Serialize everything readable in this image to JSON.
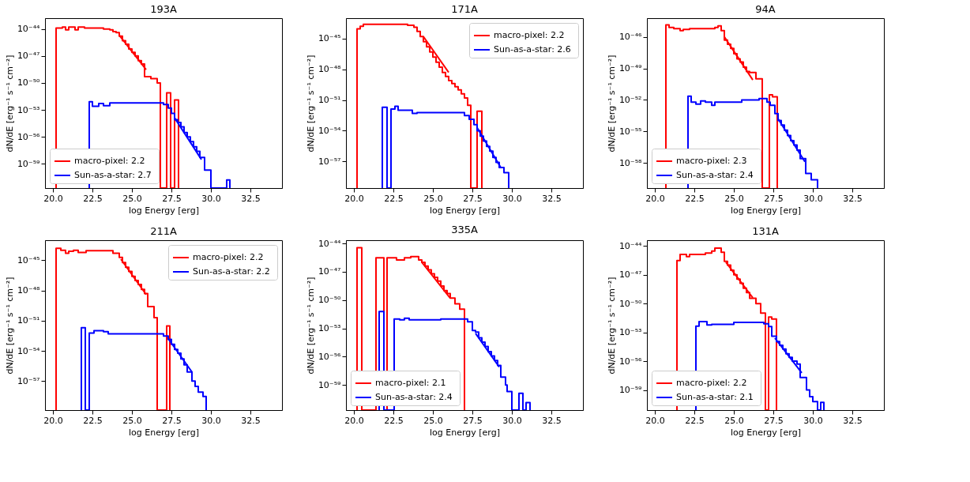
{
  "chart_data": [
    {
      "type": "histogram",
      "title": "193A",
      "xlabel": "log Energy [erg]",
      "ylabel": "dN/dE [erg⁻¹ s⁻¹ cm⁻²]",
      "log": true,
      "legend": "bottom left",
      "xlim": [
        19.5,
        34.5
      ],
      "ylim": [
        2e-62,
        1.6e-43
      ],
      "xticks": [
        {
          "value": 20,
          "label": "20.0"
        },
        22.5,
        {
          "value": 25,
          "label": "25.0"
        },
        27.5,
        {
          "value": 30,
          "label": "30.0"
        },
        32.5
      ],
      "yticks": [
        {
          "value": 1e-44,
          "label": "10⁻⁴⁴"
        },
        {
          "value": 1e-47,
          "label": "10⁻⁴⁷"
        },
        {
          "value": 1e-50,
          "label": "10⁻⁵⁰"
        },
        {
          "value": 1e-53,
          "label": "10⁻⁵³"
        },
        {
          "value": 1e-56,
          "label": "10⁻⁵⁶"
        },
        {
          "value": 1e-59,
          "label": "10⁻⁵⁹"
        }
      ],
      "series": [
        {
          "name": "macro-pixel:  2.2",
          "color": "#ff0000",
          "bins": [
            20.2,
            20.6,
            20.8,
            21.0,
            21.4,
            21.6,
            22.0,
            23.2,
            23.6,
            23.8,
            24.0,
            24.2,
            24.4,
            24.6,
            24.8,
            25.0,
            25.2,
            25.4,
            25.6,
            25.8,
            26.2,
            26.6,
            26.8,
            27.2,
            27.45,
            27.7,
            27.95
          ],
          "values": [
            1.3e-44,
            1.6e-44,
            8e-45,
            1.6e-44,
            8e-45,
            1.6e-44,
            1.3e-44,
            1e-44,
            8e-45,
            5e-45,
            4e-45,
            1.6e-45,
            5e-46,
            2e-46,
            6e-47,
            2.5e-47,
            1e-47,
            3e-48,
            1.3e-48,
            5e-50,
            3e-50,
            1e-50,
            null,
            8e-52,
            null,
            1.3e-52
          ]
        },
        {
          "name": "Sun-as-a-star:  2.7",
          "color": "#0000ff",
          "bins": [
            22.3,
            22.5,
            22.9,
            23.2,
            23.6,
            23.8,
            27.0,
            27.3,
            27.5,
            27.7,
            27.9,
            28.1,
            28.3,
            28.5,
            28.7,
            28.9,
            29.1,
            29.3,
            29.6,
            30.0,
            31.0,
            31.2
          ],
          "values": [
            8e-53,
            2.5e-53,
            5e-53,
            3e-53,
            6e-53,
            6e-53,
            4e-53,
            1.6e-53,
            4e-54,
            8e-55,
            4e-55,
            1.3e-55,
            3e-56,
            1e-56,
            3e-57,
            8e-58,
            2.5e-58,
            5e-59,
            2e-60,
            null,
            1.6e-61
          ]
        },
        {
          "color": "#ff0000",
          "type": "line",
          "x": [
            24.2,
            25.9
          ],
          "values": [
            2e-45,
            3e-49
          ]
        },
        {
          "color": "#0000ff",
          "type": "line",
          "x": [
            27.7,
            29.4
          ],
          "values": [
            1.3e-54,
            3e-59
          ]
        }
      ]
    },
    {
      "type": "histogram",
      "title": "171A",
      "xlabel": "log Energy [erg]",
      "ylabel": "dN/dE [erg⁻¹ s⁻¹ cm⁻²]",
      "log": true,
      "legend": "top right",
      "xlim": [
        19.5,
        34.5
      ],
      "ylim": [
        2.5e-60,
        1e-43
      ],
      "xticks": [
        {
          "value": 20,
          "label": "20.0"
        },
        22.5,
        {
          "value": 25,
          "label": "25.0"
        },
        27.5,
        {
          "value": 30,
          "label": "30.0"
        },
        32.5
      ],
      "yticks": [
        {
          "value": 1e-45,
          "label": "10⁻⁴⁵"
        },
        {
          "value": 1e-48,
          "label": "10⁻⁴⁸"
        },
        {
          "value": 1e-51,
          "label": "10⁻⁵¹"
        },
        {
          "value": 1e-54,
          "label": "10⁻⁵⁴"
        },
        {
          "value": 1e-57,
          "label": "10⁻⁵⁷"
        }
      ],
      "series": [
        {
          "name": "macro-pixel:  2.2",
          "color": "#ff0000",
          "bins": [
            20.2,
            20.4,
            20.6,
            23.4,
            23.8,
            24.0,
            24.2,
            24.4,
            24.6,
            24.8,
            25.0,
            25.2,
            25.4,
            25.6,
            25.8,
            26.0,
            26.2,
            26.4,
            26.6,
            26.8,
            27.0,
            27.2,
            27.4,
            27.8,
            28.1
          ],
          "values": [
            9e-45,
            1.6e-44,
            2.5e-44,
            2e-44,
            1.3e-44,
            5e-45,
            1.6e-45,
            5e-46,
            1.6e-46,
            5e-47,
            1.6e-47,
            5e-48,
            1.6e-48,
            5e-49,
            2e-49,
            8e-50,
            4e-50,
            2e-50,
            1e-50,
            4e-51,
            1.6e-51,
            3e-52,
            null,
            8e-53
          ]
        },
        {
          "name": "Sun-as-a-star:  2.6",
          "color": "#0000ff",
          "bins": [
            21.8,
            22.1,
            22.35,
            22.6,
            22.8,
            23.7,
            24.0,
            27.0,
            27.3,
            27.6,
            27.8,
            28.0,
            28.2,
            28.4,
            28.6,
            28.8,
            29.0,
            29.2,
            29.5,
            29.8
          ],
          "values": [
            2e-52,
            null,
            1.3e-52,
            2.5e-52,
            1e-52,
            5e-53,
            6e-53,
            3e-53,
            1.3e-53,
            4e-54,
            1e-54,
            3e-55,
            1e-55,
            3e-56,
            1e-56,
            2.5e-57,
            8e-58,
            2.5e-58,
            8e-59
          ]
        },
        {
          "color": "#ff0000",
          "type": "line",
          "x": [
            24.4,
            26.0
          ],
          "values": [
            1.6e-45,
            5e-49
          ]
        },
        {
          "color": "#0000ff",
          "type": "line",
          "x": [
            27.8,
            29.3
          ],
          "values": [
            2e-54,
            2.5e-58
          ]
        }
      ]
    },
    {
      "type": "histogram",
      "title": "94A",
      "xlabel": "log Energy [erg]",
      "ylabel": "dN/dE [erg⁻¹ s⁻¹ cm⁻²]",
      "log": true,
      "legend": "bottom left",
      "xlim": [
        19.5,
        34.5
      ],
      "ylim": [
        4e-61,
        6e-45
      ],
      "xticks": [
        {
          "value": 20,
          "label": "20.0"
        },
        22.5,
        {
          "value": 25,
          "label": "25.0"
        },
        27.5,
        {
          "value": 30,
          "label": "30.0"
        },
        32.5
      ],
      "yticks": [
        {
          "value": 1e-46,
          "label": "10⁻⁴⁶"
        },
        {
          "value": 1e-49,
          "label": "10⁻⁴⁹"
        },
        {
          "value": 1e-52,
          "label": "10⁻⁵²"
        },
        {
          "value": 1e-55,
          "label": "10⁻⁵⁵"
        },
        {
          "value": 1e-58,
          "label": "10⁻⁵⁸"
        }
      ],
      "series": [
        {
          "name": "macro-pixel:  2.3",
          "color": "#ff0000",
          "bins": [
            20.7,
            20.9,
            21.2,
            21.6,
            21.8,
            22.2,
            23.8,
            24.0,
            24.2,
            24.4,
            24.6,
            24.8,
            25.0,
            25.2,
            25.4,
            25.6,
            25.8,
            26.0,
            26.4,
            26.8,
            27.25,
            27.45,
            27.75
          ],
          "values": [
            1.4e-45,
            8e-46,
            6e-46,
            4e-46,
            5e-46,
            6e-46,
            8e-46,
            1.1e-45,
            4e-46,
            5e-47,
            2e-47,
            8e-48,
            2.5e-48,
            8e-49,
            4e-49,
            1.3e-49,
            5e-50,
            4e-50,
            1e-50,
            null,
            3e-52,
            2e-52
          ]
        },
        {
          "name": "Sun-as-a-star:  2.4",
          "color": "#0000ff",
          "bins": [
            22.1,
            22.3,
            22.6,
            22.9,
            23.2,
            23.6,
            23.8,
            25.5,
            26.6,
            27.1,
            27.3,
            27.6,
            27.8,
            28.0,
            28.2,
            28.4,
            28.6,
            28.8,
            29.0,
            29.2,
            29.55,
            29.9,
            30.3
          ],
          "values": [
            2.2e-52,
            6e-53,
            4e-53,
            8e-53,
            6e-53,
            3e-53,
            6e-53,
            1e-52,
            1.3e-52,
            6e-53,
            3e-53,
            5e-54,
            1.1e-54,
            4e-55,
            1.3e-55,
            4e-56,
            1.3e-56,
            5e-57,
            1.6e-57,
            2.5e-58,
            1e-59,
            2.5e-60
          ]
        },
        {
          "color": "#ff0000",
          "type": "line",
          "x": [
            24.4,
            26.2
          ],
          "values": [
            1e-46,
            8e-51
          ]
        },
        {
          "color": "#0000ff",
          "type": "line",
          "x": [
            27.8,
            29.5
          ],
          "values": [
            1.6e-54,
            1.3e-58
          ]
        }
      ]
    },
    {
      "type": "histogram",
      "title": "211A",
      "xlabel": "log Energy [erg]",
      "ylabel": "dN/dE [erg⁻¹ s⁻¹ cm⁻²]",
      "log": true,
      "legend": "top right",
      "xlim": [
        19.5,
        34.5
      ],
      "ylim": [
        1.3e-60,
        1e-43
      ],
      "xticks": [
        {
          "value": 20,
          "label": "20.0"
        },
        22.5,
        {
          "value": 25,
          "label": "25.0"
        },
        27.5,
        {
          "value": 30,
          "label": "30.0"
        },
        32.5
      ],
      "yticks": [
        {
          "value": 1e-45,
          "label": "10⁻⁴⁵"
        },
        {
          "value": 1e-48,
          "label": "10⁻⁴⁸"
        },
        {
          "value": 1e-51,
          "label": "10⁻⁵¹"
        },
        {
          "value": 1e-54,
          "label": "10⁻⁵⁴"
        },
        {
          "value": 1e-57,
          "label": "10⁻⁵⁷"
        }
      ],
      "series": [
        {
          "name": "macro-pixel:  2.2",
          "color": "#ff0000",
          "bins": [
            20.2,
            20.5,
            20.8,
            21.0,
            21.3,
            21.6,
            22.1,
            23.8,
            24.2,
            24.4,
            24.6,
            24.8,
            25.0,
            25.2,
            25.4,
            25.6,
            25.8,
            26.0,
            26.4,
            26.6,
            27.2,
            27.4
          ],
          "values": [
            1.6e-44,
            1e-44,
            5e-45,
            8e-45,
            1e-44,
            6e-45,
            9e-45,
            5e-45,
            2e-45,
            6e-46,
            2e-46,
            8e-47,
            2.5e-47,
            1e-47,
            4e-48,
            1.3e-48,
            5e-49,
            2.5e-50,
            2e-51,
            null,
            3e-52
          ]
        },
        {
          "name": "Sun-as-a-star:  2.2",
          "color": "#0000ff",
          "bins": [
            21.8,
            22.05,
            22.3,
            22.6,
            23.2,
            23.5,
            27.0,
            27.3,
            27.5,
            27.7,
            27.9,
            28.1,
            28.3,
            28.5,
            28.8,
            29.0,
            29.2,
            29.5,
            29.7
          ],
          "values": [
            2e-52,
            null,
            6e-53,
            1e-52,
            8e-53,
            5e-53,
            3e-53,
            1.4e-53,
            4.5e-54,
            1.4e-54,
            6e-55,
            1.6e-55,
            4e-56,
            8e-57,
            1e-57,
            3e-58,
            8e-59,
            3e-59
          ]
        },
        {
          "color": "#ff0000",
          "type": "line",
          "x": [
            24.3,
            25.9
          ],
          "values": [
            1.3e-45,
            4e-49
          ]
        },
        {
          "color": "#0000ff",
          "type": "line",
          "x": [
            27.3,
            28.8
          ],
          "values": [
            1.6e-53,
            8e-57
          ]
        }
      ]
    },
    {
      "type": "histogram",
      "title": "335A",
      "xlabel": "log Energy [erg]",
      "ylabel": "dN/dE [erg⁻¹ s⁻¹ cm⁻²]",
      "log": true,
      "legend": "bottom left",
      "xlim": [
        19.5,
        34.5
      ],
      "ylim": [
        2.2e-62,
        2.2e-44
      ],
      "xticks": [
        {
          "value": 20,
          "label": "20.0"
        },
        22.5,
        {
          "value": 25,
          "label": "25.0"
        },
        27.5,
        {
          "value": 30,
          "label": "30.0"
        },
        32.5
      ],
      "yticks": [
        {
          "value": 1e-44,
          "label": "10⁻⁴⁴"
        },
        {
          "value": 1e-47,
          "label": "10⁻⁴⁷"
        },
        {
          "value": 1e-50,
          "label": "10⁻⁵⁰"
        },
        {
          "value": 1e-53,
          "label": "10⁻⁵³"
        },
        {
          "value": 1e-56,
          "label": "10⁻⁵⁶"
        },
        {
          "value": 1e-59,
          "label": "10⁻⁵⁹"
        }
      ],
      "series": [
        {
          "name": "macro-pixel:  2.1",
          "color": "#ff0000",
          "bins": [
            20.2,
            20.5,
            21.4,
            21.9,
            22.1,
            22.7,
            23.2,
            23.6,
            24.1,
            24.3,
            24.5,
            24.7,
            24.9,
            25.1,
            25.3,
            25.5,
            25.7,
            25.9,
            26.1,
            26.4,
            26.7,
            27.0
          ],
          "values": [
            3.5e-45,
            null,
            3e-46,
            null,
            3e-46,
            1.8e-46,
            3e-46,
            4e-46,
            1.8e-46,
            1e-46,
            4e-47,
            1.6e-47,
            6e-48,
            2.5e-48,
            1e-48,
            3e-49,
            1e-49,
            5e-50,
            1.6e-50,
            4e-51,
            1.1e-51
          ]
        },
        {
          "name": "Sun-as-a-star:  2.4",
          "color": "#0000ff",
          "bins": [
            21.6,
            21.9,
            22.55,
            22.9,
            23.2,
            23.5,
            25.5,
            27.2,
            27.5,
            27.7,
            27.9,
            28.1,
            28.3,
            28.5,
            28.7,
            28.9,
            29.1,
            29.3,
            29.6,
            29.7,
            30.0,
            30.45,
            30.7,
            30.9,
            31.15
          ],
          "values": [
            6e-52,
            null,
            1e-52,
            8e-53,
            1.2e-52,
            8e-53,
            1e-52,
            5e-53,
            6e-54,
            4e-54,
            1e-54,
            3.5e-55,
            1.2e-55,
            3.5e-56,
            1.2e-56,
            4e-57,
            1.2e-57,
            7e-59,
            1e-59,
            2e-60,
            null,
            1.3e-60,
            null,
            1.4e-61
          ]
        },
        {
          "color": "#ff0000",
          "type": "line",
          "x": [
            24.3,
            26.1
          ],
          "values": [
            1e-46,
            1.6e-50
          ]
        },
        {
          "color": "#0000ff",
          "type": "line",
          "x": [
            27.7,
            29.2
          ],
          "values": [
            3e-54,
            8e-58
          ]
        }
      ]
    },
    {
      "type": "histogram",
      "title": "131A",
      "xlabel": "log Energy [erg]",
      "ylabel": "dN/dE [erg⁻¹ s⁻¹ cm⁻²]",
      "log": true,
      "legend": "bottom left",
      "xlim": [
        19.5,
        34.5
      ],
      "ylim": [
        8e-62,
        4e-44
      ],
      "xticks": [
        {
          "value": 20,
          "label": "20.0"
        },
        22.5,
        {
          "value": 25,
          "label": "25.0"
        },
        27.5,
        {
          "value": 30,
          "label": "30.0"
        },
        32.5
      ],
      "yticks": [
        {
          "value": 1e-44,
          "label": "10⁻⁴⁴"
        },
        {
          "value": 1e-47,
          "label": "10⁻⁴⁷"
        },
        {
          "value": 1e-50,
          "label": "10⁻⁵⁰"
        },
        {
          "value": 1e-53,
          "label": "10⁻⁵³"
        },
        {
          "value": 1e-56,
          "label": "10⁻⁵⁶"
        },
        {
          "value": 1e-59,
          "label": "10⁻⁵⁹"
        }
      ],
      "series": [
        {
          "name": "macro-pixel:  2.2",
          "color": "#ff0000",
          "bins": [
            21.4,
            21.6,
            22.0,
            22.2,
            23.2,
            23.6,
            23.8,
            24.2,
            24.4,
            24.6,
            24.8,
            25.0,
            25.2,
            25.4,
            25.6,
            25.8,
            26.0,
            26.4,
            26.7,
            27.0,
            27.2,
            27.4,
            27.7
          ],
          "values": [
            3e-46,
            1.3e-45,
            8e-46,
            1.3e-45,
            1.8e-45,
            3e-45,
            6e-45,
            2.2e-45,
            2.5e-46,
            1e-46,
            3e-47,
            1e-47,
            3.5e-48,
            1.3e-48,
            4e-49,
            1.4e-49,
            3.5e-50,
            1e-50,
            1e-51,
            null,
            4e-52,
            2.5e-52
          ]
        },
        {
          "name": "Sun-as-a-star:  2.1",
          "color": "#0000ff",
          "bins": [
            22.6,
            22.8,
            23.3,
            23.6,
            25.0,
            26.9,
            27.2,
            27.4,
            27.7,
            27.9,
            28.1,
            28.3,
            28.5,
            28.7,
            29.0,
            29.2,
            29.6,
            29.8,
            30.0,
            30.3,
            30.5,
            30.7
          ],
          "values": [
            4.5e-53,
            1.3e-52,
            6e-53,
            7e-53,
            1.1e-52,
            8e-53,
            4e-53,
            4e-54,
            1.1e-54,
            4.5e-55,
            1.8e-55,
            6e-56,
            2.5e-56,
            1e-56,
            5e-57,
            2e-58,
            1e-59,
            2e-60,
            6e-61,
            null,
            5e-61
          ]
        },
        {
          "color": "#ff0000",
          "type": "line",
          "x": [
            24.5,
            26.2
          ],
          "values": [
            2e-46,
            4e-50
          ]
        },
        {
          "color": "#0000ff",
          "type": "line",
          "x": [
            27.6,
            29.3
          ],
          "values": [
            2.5e-54,
            6e-58
          ]
        }
      ]
    }
  ]
}
